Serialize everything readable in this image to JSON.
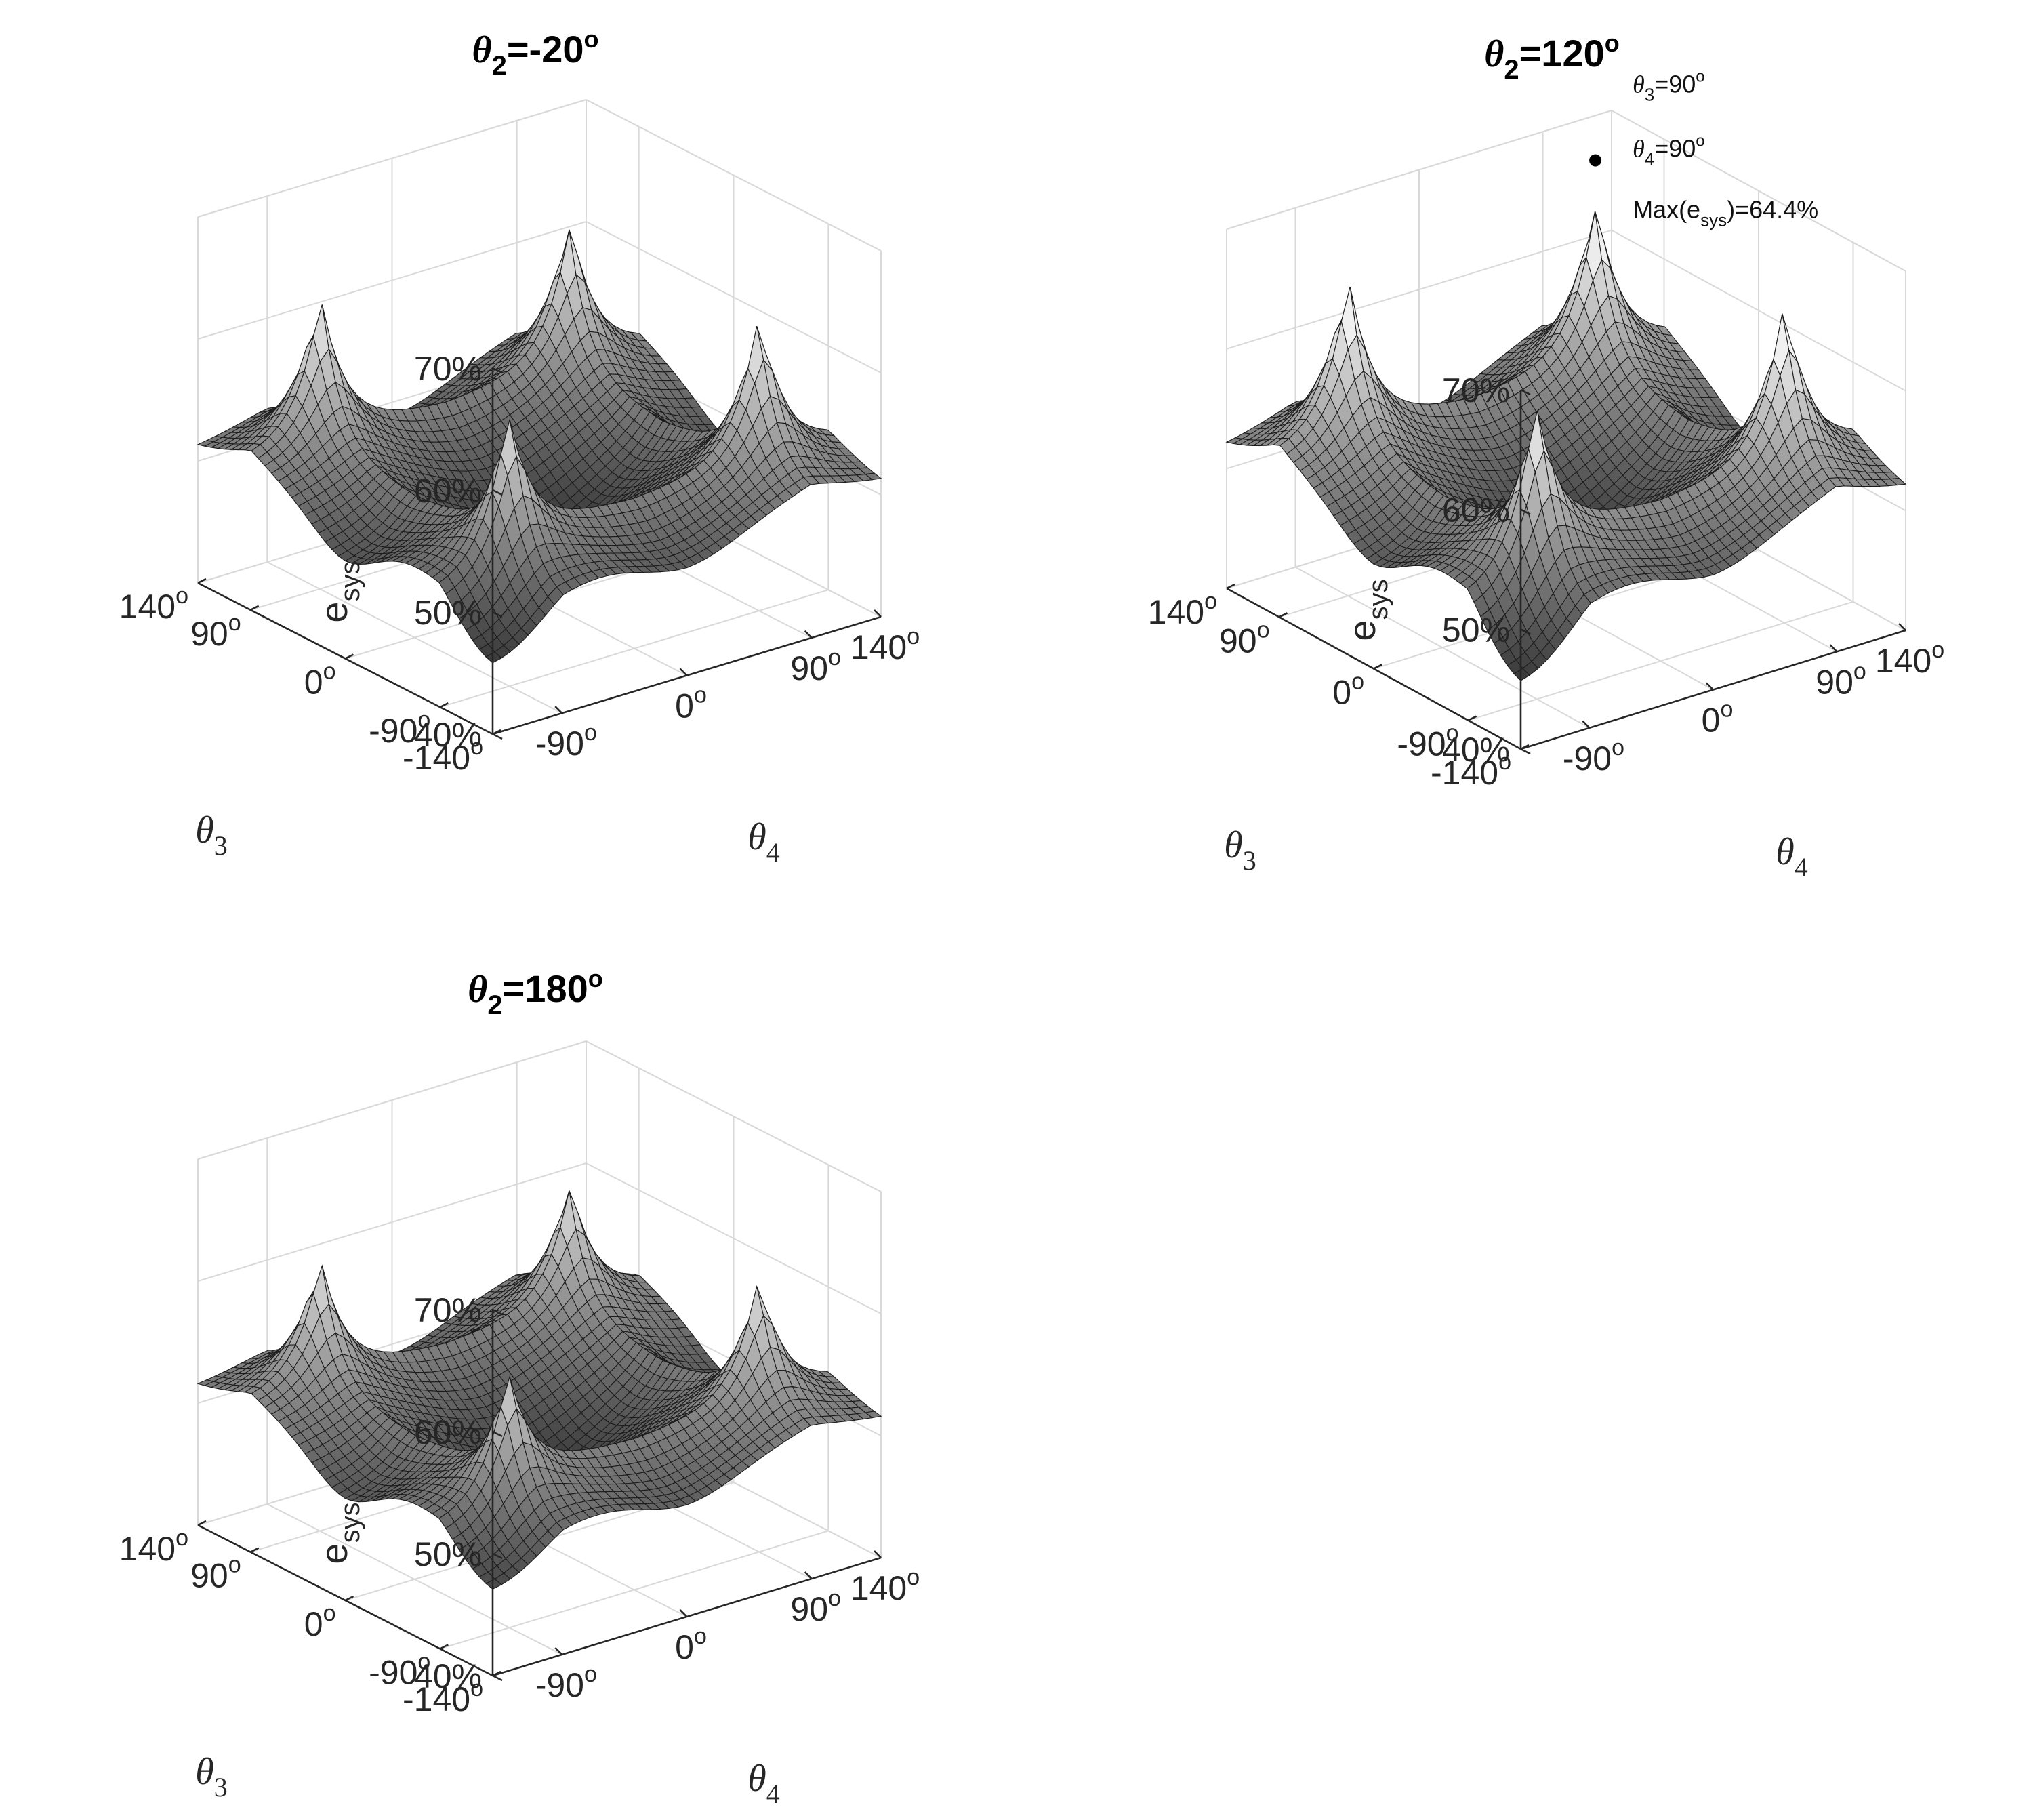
{
  "chart_data": [
    {
      "type": "surface",
      "title": "θ2=-20o",
      "title_parts": {
        "symbol": "θ",
        "sub": "2",
        "value": "=-20",
        "sup": "o"
      },
      "xlabel": "θ3",
      "ylabel": "θ4",
      "zlabel": "esys",
      "xlabel_parts": {
        "symbol": "θ",
        "sub": "3"
      },
      "ylabel_parts": {
        "symbol": "θ",
        "sub": "4"
      },
      "zlabel_parts": {
        "base": "e",
        "sub": "sys"
      },
      "xlim": [
        -140,
        140
      ],
      "ylim": [
        -140,
        140
      ],
      "zlim": [
        40,
        70
      ],
      "xticks": [
        -140,
        -90,
        0,
        90,
        140
      ],
      "yticks": [
        -90,
        0,
        90,
        140
      ],
      "zticks": [
        40,
        50,
        60,
        70
      ],
      "xtick_labels": [
        "-140",
        "-90",
        "0",
        "90",
        "140"
      ],
      "ytick_labels": [
        "-90",
        "0",
        "90",
        "140"
      ],
      "ztick_labels": [
        "40%",
        "50%",
        "60%",
        "70%"
      ],
      "tick_superscript": "o",
      "grid": true,
      "surface": {
        "base": 50.0,
        "ridge_x": 2.2,
        "ridge_y": 1.5,
        "peak_amp": 10.5,
        "peak_angles": [
          -90,
          90
        ],
        "corner_low": 44.5
      }
    },
    {
      "type": "surface",
      "title": "θ2=120o",
      "title_parts": {
        "symbol": "θ",
        "sub": "2",
        "value": "=120",
        "sup": "o"
      },
      "xlabel": "θ3",
      "ylabel": "θ4",
      "zlabel": "esys",
      "xlabel_parts": {
        "symbol": "θ",
        "sub": "3"
      },
      "ylabel_parts": {
        "symbol": "θ",
        "sub": "4"
      },
      "zlabel_parts": {
        "base": "e",
        "sub": "sys"
      },
      "xlim": [
        -140,
        140
      ],
      "ylim": [
        -140,
        140
      ],
      "zlim": [
        40,
        70
      ],
      "xticks": [
        -140,
        -90,
        0,
        90,
        140
      ],
      "yticks": [
        -90,
        0,
        90,
        140
      ],
      "zticks": [
        40,
        50,
        60,
        70
      ],
      "xtick_labels": [
        "-140",
        "-90",
        "0",
        "90",
        "140"
      ],
      "ytick_labels": [
        "-90",
        "0",
        "90",
        "140"
      ],
      "ztick_labels": [
        "40%",
        "50%",
        "60%",
        "70%"
      ],
      "tick_superscript": "o",
      "grid": true,
      "surface": {
        "base": 50.5,
        "ridge_x": 2.8,
        "ridge_y": 2.0,
        "peak_amp": 11.5,
        "peak_angles": [
          -90,
          90
        ],
        "corner_low": 44.0
      },
      "max_point": {
        "theta3": 90,
        "theta4": 90,
        "value": 64.4
      },
      "annotation": {
        "line1": {
          "symbol": "θ",
          "sub": "3",
          "text": "=90",
          "sup": "o"
        },
        "line2": {
          "symbol": "θ",
          "sub": "4",
          "text": "=90",
          "sup": "o"
        },
        "line3": {
          "prefix": "Max(e",
          "sub": "sys",
          "suffix": ")=64.4%"
        }
      }
    },
    {
      "type": "surface",
      "title": "θ2=180o",
      "title_parts": {
        "symbol": "θ",
        "sub": "2",
        "value": "=180",
        "sup": "o"
      },
      "xlabel": "θ3",
      "ylabel": "θ4",
      "zlabel": "esys",
      "xlabel_parts": {
        "symbol": "θ",
        "sub": "3"
      },
      "ylabel_parts": {
        "symbol": "θ",
        "sub": "4"
      },
      "zlabel_parts": {
        "base": "e",
        "sub": "sys"
      },
      "xlim": [
        -140,
        140
      ],
      "ylim": [
        -140,
        140
      ],
      "zlim": [
        40,
        70
      ],
      "xticks": [
        -140,
        -90,
        0,
        90,
        140
      ],
      "yticks": [
        -90,
        0,
        90,
        140
      ],
      "zticks": [
        40,
        50,
        60,
        70
      ],
      "xtick_labels": [
        "-140",
        "-90",
        "0",
        "90",
        "140"
      ],
      "ytick_labels": [
        "-90",
        "0",
        "90",
        "140"
      ],
      "ztick_labels": [
        "40%",
        "50%",
        "60%",
        "70%"
      ],
      "tick_superscript": "o",
      "grid": true,
      "surface": {
        "base": 50.5,
        "ridge_x": 1.8,
        "ridge_y": 1.2,
        "peak_amp": 9.0,
        "peak_angles": [
          -90,
          90
        ],
        "corner_low": 46.0
      }
    }
  ]
}
